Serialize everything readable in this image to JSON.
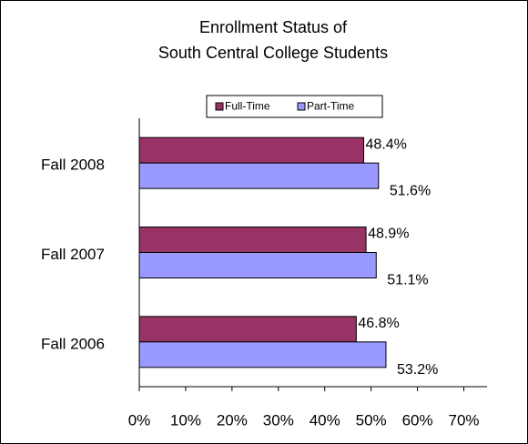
{
  "chart_data": {
    "type": "hbar",
    "title": [
      "Enrollment Status of",
      "South Central College Students"
    ],
    "categories": [
      "Fall 2008",
      "Fall 2007",
      "Fall 2006"
    ],
    "series": [
      {
        "name": "Full-Time",
        "color": "#993366",
        "values": [
          48.4,
          48.9,
          46.8
        ],
        "value_labels": [
          "48.4%",
          "48.9%",
          "46.8%"
        ]
      },
      {
        "name": "Part-Time",
        "color": "#9999ff",
        "values": [
          51.6,
          51.1,
          53.2
        ],
        "value_labels": [
          "51.6%",
          "51.1%",
          "53.2%"
        ]
      }
    ],
    "xlim": [
      0,
      75
    ],
    "xticks": [
      {
        "value": 0,
        "label": "0%"
      },
      {
        "value": 10,
        "label": "10%"
      },
      {
        "value": 20,
        "label": "20%"
      },
      {
        "value": 30,
        "label": "30%"
      },
      {
        "value": 40,
        "label": "40%"
      },
      {
        "value": 50,
        "label": "50%"
      },
      {
        "value": 60,
        "label": "60%"
      },
      {
        "value": 70,
        "label": "70%"
      }
    ],
    "legend": "top"
  }
}
